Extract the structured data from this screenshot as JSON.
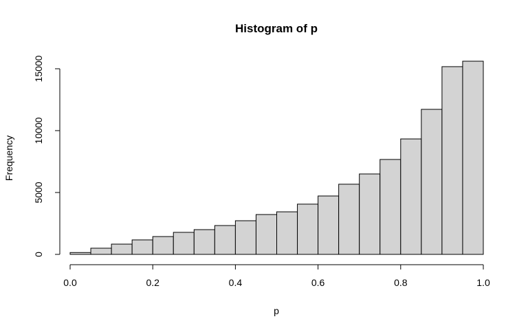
{
  "chart_data": {
    "type": "histogram",
    "title": "Histogram of p",
    "xlabel": "p",
    "ylabel": "Frequency",
    "bins": [
      0,
      0.05,
      0.1,
      0.15,
      0.2,
      0.25,
      0.3,
      0.35,
      0.4,
      0.45,
      0.5,
      0.55,
      0.6,
      0.65,
      0.7,
      0.75,
      0.8,
      0.85,
      0.9,
      0.95,
      1
    ],
    "counts": [
      150,
      500,
      830,
      1170,
      1440,
      1780,
      2000,
      2330,
      2720,
      3220,
      3440,
      4060,
      4720,
      5670,
      6500,
      7670,
      9330,
      11720,
      15170,
      15610
    ],
    "color": "#d3d3d3",
    "xlim": [
      0,
      1
    ],
    "xticks": [
      {
        "value": 0,
        "label": "0.0"
      },
      0.2,
      0.4,
      0.6,
      0.8,
      {
        "value": 1,
        "label": "1.0"
      }
    ],
    "ylim": [
      0,
      15000
    ],
    "yticks": [
      0,
      5000,
      10000,
      15000
    ]
  }
}
